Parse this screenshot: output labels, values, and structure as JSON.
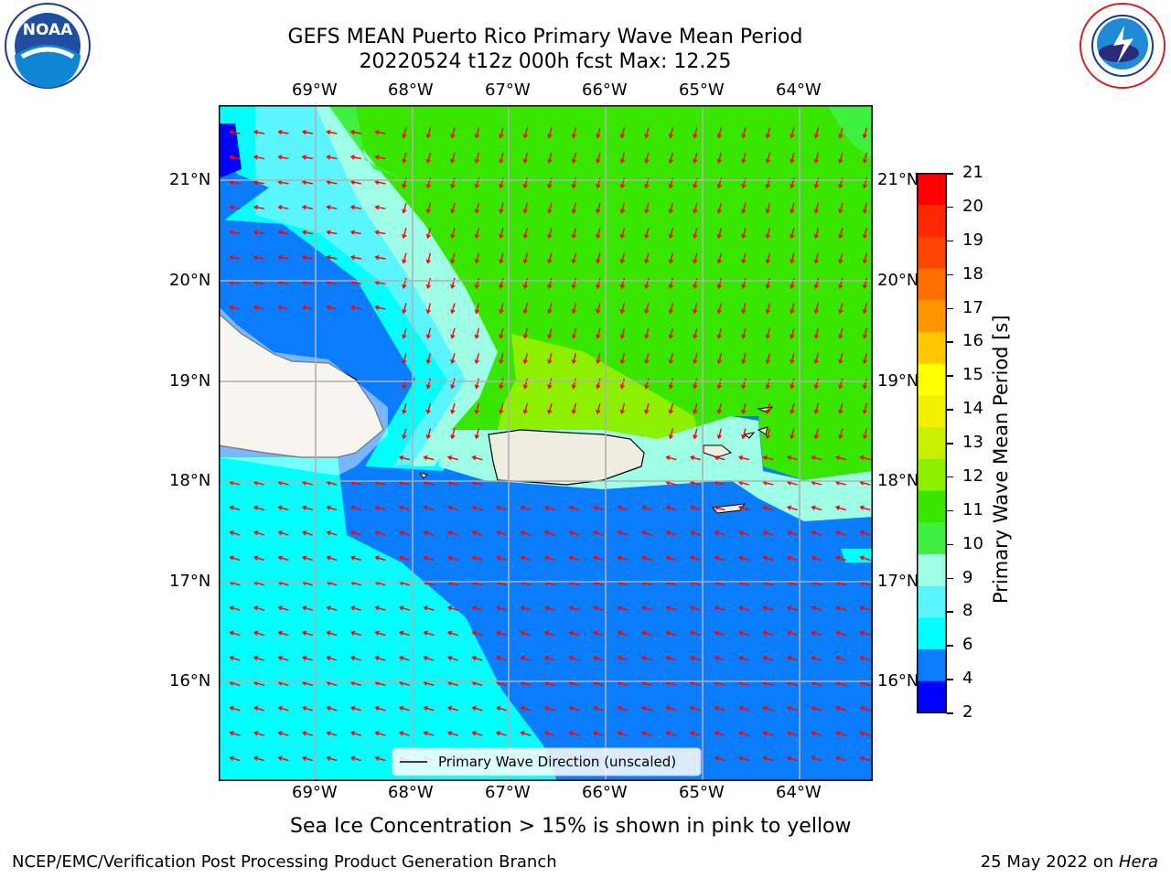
{
  "title": {
    "line1": "GEFS MEAN Puerto Rico Primary Wave Mean Period",
    "line2": "20220524 t12z 000h fcst   Max: 12.25"
  },
  "map": {
    "lon_labels": [
      "69°W",
      "68°W",
      "67°W",
      "66°W",
      "65°W",
      "64°W"
    ],
    "lat_labels": [
      "21°N",
      "20°N",
      "19°N",
      "18°N",
      "17°N",
      "16°N"
    ],
    "legend_label": "Primary Wave Direction (unscaled)",
    "colors": {
      "band_2_4": "#0000ff",
      "band_4_6": "#0a7dff",
      "band_6_8": "#00ffff",
      "band_8_9": "#5af5ff",
      "band_9_10": "#9effe6",
      "band_10_11": "#40f040",
      "band_11_12": "#38e600",
      "band_12_13": "#8cf000",
      "land": "#eeede0",
      "arrow": "#ff0000",
      "grid": "#b0b0b0"
    }
  },
  "colorbar": {
    "label": "Primary Wave Mean Period [s]",
    "ticks": [
      "21",
      "20",
      "19",
      "18",
      "17",
      "16",
      "15",
      "14",
      "13",
      "12",
      "11",
      "10",
      "9",
      "8",
      "6",
      "4",
      "2"
    ],
    "colors": [
      "#0000ff",
      "#0a7dff",
      "#00ffff",
      "#5af5ff",
      "#9effe6",
      "#40f040",
      "#38e600",
      "#8cf000",
      "#c8f000",
      "#f0f000",
      "#ffff00",
      "#ffc800",
      "#ff9600",
      "#ff6e00",
      "#ff4600",
      "#ff2800",
      "#ff0000"
    ]
  },
  "footer": {
    "sea_ice_note": "Sea Ice Concentration > 15% is shown in pink to yellow",
    "branch": "NCEP/EMC/Verification Post Processing Product Generation Branch",
    "date_prefix": "25 May 2022 on ",
    "date_host": "Hera"
  },
  "logos": {
    "noaa": {
      "text": "NOAA",
      "ring_text": "NATIONAL OCEANIC AND ATMOSPHERIC ADMINISTRATION · U.S. DEPARTMENT OF COMMERCE"
    },
    "nws": {
      "ring_text": "NATIONAL WEATHER SERVICE"
    }
  }
}
